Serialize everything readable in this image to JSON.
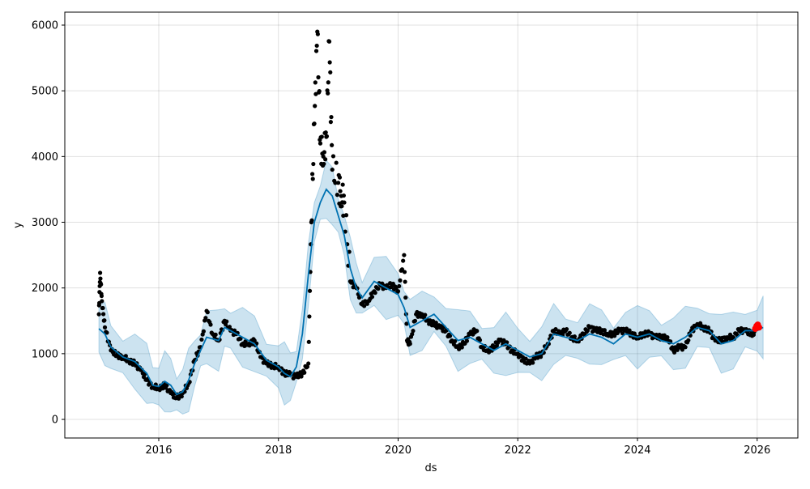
{
  "chart_data": {
    "type": "scatter",
    "title": "",
    "xlabel": "ds",
    "ylabel": "y",
    "xlim": [
      2014.43,
      2026.68
    ],
    "ylim": [
      -283,
      6197
    ],
    "xticks": [
      2016,
      2018,
      2020,
      2022,
      2024,
      2026
    ],
    "xtick_labels": [
      "2016",
      "2018",
      "2020",
      "2022",
      "2024",
      "2026"
    ],
    "yticks": [
      0,
      1000,
      2000,
      3000,
      4000,
      5000,
      6000
    ],
    "ytick_labels": [
      "0",
      "1000",
      "2000",
      "3000",
      "4000",
      "5000",
      "6000"
    ],
    "grid": true,
    "colors": {
      "observed": "#000000",
      "forecast": "#0072B2",
      "interval": "#0072B2",
      "highlight": "#ff0000"
    },
    "forecast": {
      "x": [
        2015.0,
        2015.1,
        2015.2,
        2015.4,
        2015.6,
        2015.8,
        2015.9,
        2016.0,
        2016.1,
        2016.2,
        2016.3,
        2016.4,
        2016.5,
        2016.6,
        2016.7,
        2016.8,
        2017.0,
        2017.1,
        2017.2,
        2017.4,
        2017.6,
        2017.8,
        2018.0,
        2018.1,
        2018.2,
        2018.3,
        2018.4,
        2018.5,
        2018.6,
        2018.7,
        2018.8,
        2018.9,
        2019.0,
        2019.1,
        2019.2,
        2019.3,
        2019.4,
        2019.6,
        2019.8,
        2020.0,
        2020.1,
        2020.2,
        2020.4,
        2020.6,
        2020.8,
        2021.0,
        2021.2,
        2021.4,
        2021.6,
        2021.8,
        2022.0,
        2022.2,
        2022.4,
        2022.6,
        2022.8,
        2023.0,
        2023.2,
        2023.4,
        2023.6,
        2023.8,
        2024.0,
        2024.2,
        2024.4,
        2024.6,
        2024.8,
        2025.0,
        2025.2,
        2025.4,
        2025.6,
        2025.8,
        2026.0,
        2026.1
      ],
      "yhat": [
        1380,
        1300,
        1100,
        950,
        880,
        700,
        520,
        500,
        580,
        520,
        380,
        420,
        600,
        850,
        1050,
        1250,
        1200,
        1400,
        1350,
        1250,
        1150,
        900,
        800,
        700,
        650,
        800,
        1300,
        2200,
        3000,
        3300,
        3500,
        3400,
        3100,
        2800,
        2300,
        2000,
        1850,
        2100,
        2000,
        1900,
        1700,
        1400,
        1500,
        1600,
        1400,
        1200,
        1250,
        1150,
        1050,
        1150,
        1050,
        950,
        1000,
        1300,
        1250,
        1200,
        1300,
        1250,
        1150,
        1300,
        1250,
        1300,
        1200,
        1150,
        1250,
        1400,
        1350,
        1150,
        1200,
        1350,
        1350,
        1400
      ],
      "interval_halfwidth": 420
    },
    "observed": {
      "x": [
        2015.0,
        2015.02,
        2015.05,
        2015.1,
        2015.2,
        2015.3,
        2015.4,
        2015.5,
        2015.6,
        2015.7,
        2015.8,
        2015.9,
        2016.0,
        2016.1,
        2016.2,
        2016.3,
        2016.4,
        2016.5,
        2016.6,
        2016.7,
        2016.8,
        2016.9,
        2017.0,
        2017.1,
        2017.2,
        2017.3,
        2017.4,
        2017.5,
        2017.6,
        2017.7,
        2017.8,
        2017.9,
        2018.0,
        2018.1,
        2018.2,
        2018.3,
        2018.4,
        2018.5,
        2018.55,
        2018.6,
        2018.65,
        2018.7,
        2018.75,
        2018.8,
        2018.85,
        2018.9,
        2019.0,
        2019.05,
        2019.1,
        2019.2,
        2019.3,
        2019.4,
        2019.5,
        2019.6,
        2019.7,
        2019.8,
        2019.9,
        2020.0,
        2020.1,
        2020.15,
        2020.2,
        2020.3,
        2020.4,
        2020.5,
        2020.6,
        2020.7,
        2020.8,
        2020.9,
        2021.0,
        2021.1,
        2021.2,
        2021.3,
        2021.4,
        2021.5,
        2021.6,
        2021.7,
        2021.8,
        2021.9,
        2022.0,
        2022.1,
        2022.2,
        2022.3,
        2022.4,
        2022.5,
        2022.6,
        2022.7,
        2022.8,
        2022.9,
        2023.0,
        2023.1,
        2023.2,
        2023.3,
        2023.4,
        2023.5,
        2023.6,
        2023.7,
        2023.8,
        2023.9,
        2024.0,
        2024.1,
        2024.2,
        2024.3,
        2024.4,
        2024.5,
        2024.6,
        2024.7,
        2024.8,
        2024.9,
        2025.0,
        2025.1,
        2025.2,
        2025.3,
        2025.4,
        2025.5,
        2025.6,
        2025.7,
        2025.8,
        2025.9,
        2025.95
      ],
      "y": [
        1600,
        2230,
        1800,
        1400,
        1050,
        980,
        950,
        900,
        850,
        750,
        600,
        500,
        480,
        520,
        400,
        330,
        400,
        550,
        900,
        1100,
        1650,
        1300,
        1200,
        1500,
        1350,
        1300,
        1150,
        1150,
        1200,
        950,
        850,
        820,
        800,
        700,
        680,
        650,
        700,
        850,
        3000,
        4500,
        5900,
        4200,
        4000,
        4300,
        5750,
        3800,
        3600,
        3400,
        3300,
        2100,
        2000,
        1750,
        1800,
        1950,
        2050,
        2000,
        2050,
        1950,
        2500,
        1200,
        1150,
        1600,
        1600,
        1500,
        1450,
        1400,
        1350,
        1200,
        1100,
        1150,
        1300,
        1350,
        1100,
        1050,
        1100,
        1200,
        1150,
        1050,
        1000,
        900,
        850,
        950,
        1000,
        1150,
        1350,
        1300,
        1350,
        1250,
        1200,
        1300,
        1400,
        1350,
        1350,
        1300,
        1300,
        1350,
        1350,
        1300,
        1250,
        1300,
        1300,
        1250,
        1250,
        1250,
        1050,
        1100,
        1100,
        1350,
        1450,
        1400,
        1350,
        1200,
        1200,
        1250,
        1250,
        1350,
        1350,
        1300,
        1330
      ]
    },
    "highlight": {
      "x": [
        2025.97,
        2025.99,
        2026.01,
        2026.03
      ],
      "y": [
        1380,
        1420,
        1440,
        1400
      ]
    }
  }
}
